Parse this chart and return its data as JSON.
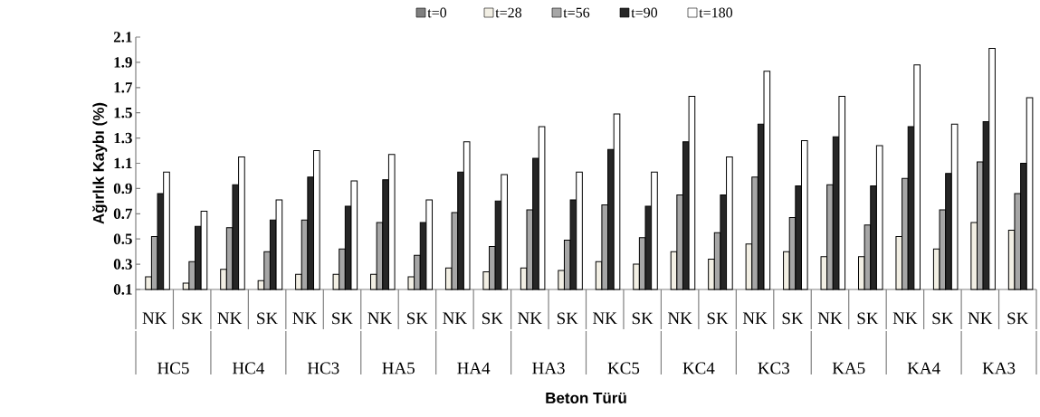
{
  "chart_data": {
    "type": "bar",
    "xlabel": "Beton Türü",
    "ylabel": "Ağırlık Kaybı (%)",
    "legend": "top",
    "categories": [
      "NK",
      "SK",
      "NK",
      "SK",
      "NK",
      "SK",
      "NK",
      "SK",
      "NK",
      "SK",
      "NK",
      "SK",
      "NK",
      "SK",
      "NK",
      "SK",
      "NK",
      "SK",
      "NK",
      "SK",
      "NK",
      "SK",
      "NK",
      "SK"
    ],
    "annotations": [
      "HC5",
      "HC4",
      "HC3",
      "HA5",
      "HA4",
      "HA3",
      "KC5",
      "KC4",
      "KC3",
      "KA5",
      "KA4",
      "KA3"
    ],
    "ylim": [
      0.1,
      2.1
    ],
    "yticks": [
      0.1,
      0.3,
      0.5,
      0.7,
      0.9,
      1.1,
      1.3,
      1.5,
      1.7,
      1.9,
      2.1
    ],
    "series": [
      {
        "name": "t=0",
        "color": "#7f7f7f",
        "values": [
          null,
          null,
          null,
          null,
          null,
          null,
          null,
          null,
          null,
          null,
          null,
          null,
          null,
          null,
          null,
          null,
          null,
          null,
          null,
          null,
          null,
          null,
          null,
          null
        ]
      },
      {
        "name": "t=28",
        "color": "#f2efe4",
        "values": [
          0.2,
          0.15,
          0.26,
          0.17,
          0.22,
          0.22,
          0.22,
          0.2,
          0.27,
          0.24,
          0.27,
          0.25,
          0.32,
          0.3,
          0.4,
          0.34,
          0.46,
          0.4,
          0.36,
          0.36,
          0.52,
          0.42,
          0.63,
          0.57
        ]
      },
      {
        "name": "t=56",
        "color": "#a6a6a6",
        "values": [
          0.52,
          0.32,
          0.59,
          0.4,
          0.65,
          0.42,
          0.63,
          0.37,
          0.71,
          0.44,
          0.73,
          0.49,
          0.77,
          0.51,
          0.85,
          0.55,
          0.99,
          0.67,
          0.93,
          0.61,
          0.98,
          0.73,
          1.11,
          0.86
        ]
      },
      {
        "name": "t=90",
        "color": "#262626",
        "values": [
          0.86,
          0.6,
          0.93,
          0.65,
          0.99,
          0.76,
          0.97,
          0.63,
          1.03,
          0.8,
          1.14,
          0.81,
          1.21,
          0.76,
          1.27,
          0.85,
          1.41,
          0.92,
          1.31,
          0.92,
          1.39,
          1.02,
          1.43,
          1.1
        ]
      },
      {
        "name": "t=180",
        "color": "#ffffff",
        "values": [
          1.03,
          0.72,
          1.15,
          0.81,
          1.2,
          0.96,
          1.17,
          0.81,
          1.27,
          1.01,
          1.39,
          1.03,
          1.49,
          1.03,
          1.63,
          1.15,
          1.83,
          1.28,
          1.63,
          1.24,
          1.88,
          1.41,
          2.01,
          1.62
        ]
      }
    ]
  }
}
